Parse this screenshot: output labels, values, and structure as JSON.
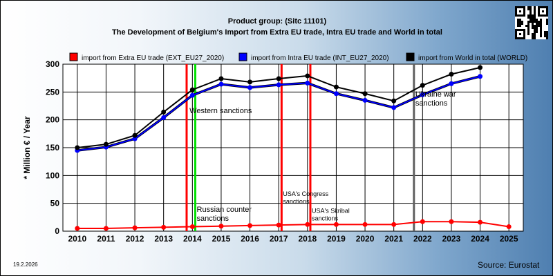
{
  "header": {
    "line1": "Product group:  (Sitc 11101)",
    "line2": "The Development of Belgium's Import from Extra EU trade, Intra EU trade and World in total"
  },
  "footer": {
    "date": "19.2.2026",
    "source": "Source: Eurostat"
  },
  "qr_icon": "qr-code-icon",
  "chart_data": {
    "type": "line",
    "x": [
      2010,
      2011,
      2012,
      2013,
      2014,
      2015,
      2016,
      2017,
      2018,
      2019,
      2020,
      2021,
      2022,
      2023,
      2024,
      2025
    ],
    "ylabel": "* Million € / Year",
    "xlim": [
      2009.5,
      2025.5
    ],
    "ylim": [
      0,
      300
    ],
    "yticks": [
      0,
      50,
      100,
      150,
      200,
      250,
      300
    ],
    "grid": true,
    "legend_position": "top",
    "series": [
      {
        "name": "import from Extra EU trade (EXT_EU27_2020)",
        "color": "#ff0000",
        "values": [
          5,
          5,
          6,
          7,
          8,
          9,
          10,
          11,
          12,
          12,
          12,
          12,
          17,
          17,
          16,
          8
        ]
      },
      {
        "name": "import from Intra EU trade (INT_EU27_2020)",
        "color": "#0000ff",
        "values": [
          145,
          151,
          166,
          204,
          244,
          264,
          258,
          263,
          266,
          247,
          235,
          222,
          245,
          265,
          278,
          null
        ]
      },
      {
        "name": "import from World in total (WORLD)",
        "color": "#000000",
        "values": [
          150,
          156,
          172,
          214,
          254,
          274,
          268,
          274,
          279,
          259,
          247,
          234,
          262,
          282,
          294,
          null
        ]
      }
    ],
    "events": [
      {
        "x": 2013.8,
        "color": "#ff0000",
        "label": "Western sanctions",
        "label_x": 2013.9,
        "label_y": 212
      },
      {
        "x": 2014.1,
        "color": "#00e000",
        "label_lines": [
          "Russian counter",
          "sanctions"
        ],
        "label_x": 2014.15,
        "label_y": 35
      },
      {
        "x": 2017.1,
        "color": "#ff0000",
        "label_lines": [
          "USA's Congress",
          "sanctions"
        ],
        "label_x": 2017.15,
        "label_y": 63,
        "small": true
      },
      {
        "x": 2018.1,
        "color": "#ff0000",
        "label_lines": [
          "USA's Skribal",
          "sanctions"
        ],
        "label_x": 2018.15,
        "label_y": 33,
        "small": true
      },
      {
        "x": 2021.7,
        "color": "#606060",
        "label_lines": [
          "Ukraine war",
          "sanctions"
        ],
        "label_x": 2021.75,
        "label_y": 242
      }
    ]
  }
}
